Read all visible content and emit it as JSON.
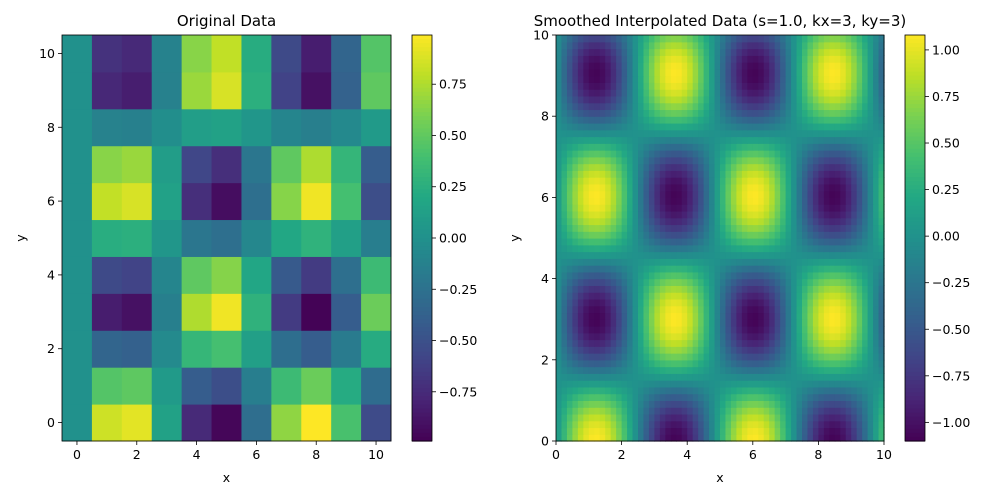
{
  "chart_data": [
    {
      "type": "heatmap",
      "title": "Original Data",
      "xlabel": "x",
      "ylabel": "y",
      "colormap": "viridis",
      "x": [
        0,
        1,
        2,
        3,
        4,
        5,
        6,
        7,
        8,
        9,
        10
      ],
      "y": [
        0,
        1,
        2,
        3,
        4,
        5,
        6,
        7,
        8,
        9,
        10
      ],
      "xlim": [
        -0.5,
        10.5
      ],
      "ylim": [
        -0.5,
        10.5
      ],
      "xticks": [
        0,
        2,
        4,
        6,
        8,
        10
      ],
      "yticks": [
        0,
        2,
        4,
        6,
        8,
        10
      ],
      "values_function": "sin(x) * cos(y)",
      "vmin": -0.99,
      "vmax": 0.99,
      "colorbar_ticks": [
        "0.75",
        "0.50",
        "0.25",
        "0.00",
        "−0.25",
        "−0.50",
        "−0.75"
      ],
      "colorbar_tick_values": [
        0.75,
        0.5,
        0.25,
        0.0,
        -0.25,
        -0.5,
        -0.75
      ]
    },
    {
      "type": "heatmap",
      "title": "Smoothed Interpolated Data (s=1.0, kx=3, ky=3)",
      "xlabel": "x",
      "ylabel": "y",
      "colormap": "viridis",
      "xlim": [
        0,
        10
      ],
      "ylim": [
        0,
        10
      ],
      "xticks": [
        0,
        2,
        4,
        6,
        8,
        10
      ],
      "yticks": [
        0,
        2,
        4,
        6,
        8,
        10
      ],
      "values_function": "smoothed sin(x) * cos(y)",
      "vmin": -1.1,
      "vmax": 1.08,
      "colorbar_ticks": [
        "1.00",
        "0.75",
        "0.50",
        "0.25",
        "0.00",
        "−0.25",
        "−0.50",
        "−0.75",
        "−1.00"
      ],
      "colorbar_tick_values": [
        1.0,
        0.75,
        0.5,
        0.25,
        0.0,
        -0.25,
        -0.5,
        -0.75,
        -1.0
      ]
    }
  ]
}
